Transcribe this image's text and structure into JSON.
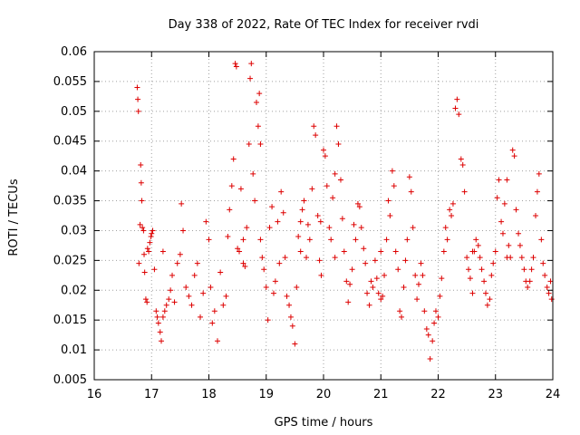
{
  "chart_data": {
    "type": "scatter",
    "title": "Day 338 of 2022, Rate Of TEC Index for receiver rvdi",
    "xlabel": "GPS time / hours",
    "ylabel": "ROTI / TECUs",
    "xlim": [
      16,
      24
    ],
    "ylim": [
      0.005,
      0.06
    ],
    "xticks": [
      "16",
      "17",
      "18",
      "19",
      "20",
      "21",
      "22",
      "23",
      "24"
    ],
    "yticks": [
      "0.005",
      "0.01",
      "0.015",
      "0.02",
      "0.025",
      "0.03",
      "0.035",
      "0.04",
      "0.045",
      "0.05",
      "0.055",
      "0.06"
    ],
    "grid": true,
    "marker": "plus",
    "color": "#dd0000",
    "series": [
      {
        "points": [
          [
            16.75,
            0.054
          ],
          [
            16.76,
            0.052
          ],
          [
            16.77,
            0.05
          ],
          [
            16.78,
            0.0245
          ],
          [
            16.8,
            0.031
          ],
          [
            16.81,
            0.041
          ],
          [
            16.82,
            0.038
          ],
          [
            16.83,
            0.035
          ],
          [
            16.84,
            0.0305
          ],
          [
            16.86,
            0.03
          ],
          [
            16.87,
            0.026
          ],
          [
            16.88,
            0.023
          ],
          [
            16.9,
            0.0185
          ],
          [
            16.92,
            0.018
          ],
          [
            16.93,
            0.027
          ],
          [
            16.95,
            0.0265
          ],
          [
            16.97,
            0.028
          ],
          [
            16.99,
            0.029
          ],
          [
            17.0,
            0.0295
          ],
          [
            17.02,
            0.03
          ],
          [
            17.05,
            0.0235
          ],
          [
            17.08,
            0.0165
          ],
          [
            17.1,
            0.0155
          ],
          [
            17.12,
            0.0145
          ],
          [
            17.15,
            0.013
          ],
          [
            17.17,
            0.0115
          ],
          [
            17.2,
            0.0155
          ],
          [
            17.23,
            0.0165
          ],
          [
            17.26,
            0.0175
          ],
          [
            17.3,
            0.0185
          ],
          [
            17.33,
            0.02
          ],
          [
            17.36,
            0.0225
          ],
          [
            17.4,
            0.018
          ],
          [
            17.45,
            0.0245
          ],
          [
            17.5,
            0.026
          ],
          [
            17.52,
            0.0345
          ],
          [
            17.55,
            0.03
          ],
          [
            17.6,
            0.0205
          ],
          [
            17.65,
            0.019
          ],
          [
            17.7,
            0.0175
          ],
          [
            17.75,
            0.0225
          ],
          [
            17.8,
            0.0245
          ],
          [
            17.85,
            0.0155
          ],
          [
            17.9,
            0.0195
          ],
          [
            17.95,
            0.0315
          ],
          [
            18.0,
            0.0285
          ],
          [
            18.03,
            0.0205
          ],
          [
            18.06,
            0.0145
          ],
          [
            18.1,
            0.0165
          ],
          [
            18.15,
            0.0115
          ],
          [
            18.2,
            0.023
          ],
          [
            18.25,
            0.0175
          ],
          [
            18.3,
            0.019
          ],
          [
            18.33,
            0.029
          ],
          [
            18.36,
            0.0335
          ],
          [
            18.4,
            0.0375
          ],
          [
            18.43,
            0.042
          ],
          [
            18.46,
            0.058
          ],
          [
            18.48,
            0.0575
          ],
          [
            18.5,
            0.027
          ],
          [
            18.53,
            0.0265
          ],
          [
            18.56,
            0.037
          ],
          [
            18.6,
            0.0285
          ],
          [
            18.63,
            0.024
          ],
          [
            18.66,
            0.0305
          ],
          [
            18.7,
            0.0445
          ],
          [
            18.72,
            0.0555
          ],
          [
            18.74,
            0.058
          ],
          [
            18.77,
            0.0395
          ],
          [
            18.8,
            0.035
          ],
          [
            18.83,
            0.0515
          ],
          [
            18.86,
            0.0475
          ],
          [
            18.88,
            0.053
          ],
          [
            18.9,
            0.0445
          ],
          [
            18.93,
            0.0255
          ],
          [
            18.96,
            0.0235
          ],
          [
            19.0,
            0.0205
          ],
          [
            19.03,
            0.015
          ],
          [
            19.06,
            0.0305
          ],
          [
            19.1,
            0.034
          ],
          [
            19.13,
            0.0195
          ],
          [
            19.16,
            0.0215
          ],
          [
            19.2,
            0.0315
          ],
          [
            19.23,
            0.0245
          ],
          [
            19.26,
            0.0365
          ],
          [
            19.3,
            0.033
          ],
          [
            19.33,
            0.0255
          ],
          [
            19.36,
            0.019
          ],
          [
            19.4,
            0.0175
          ],
          [
            19.43,
            0.0155
          ],
          [
            19.46,
            0.014
          ],
          [
            19.5,
            0.011
          ],
          [
            19.53,
            0.0205
          ],
          [
            19.56,
            0.029
          ],
          [
            19.6,
            0.0315
          ],
          [
            19.63,
            0.0335
          ],
          [
            19.66,
            0.035
          ],
          [
            19.7,
            0.0255
          ],
          [
            19.73,
            0.031
          ],
          [
            19.76,
            0.0285
          ],
          [
            19.8,
            0.037
          ],
          [
            19.83,
            0.0475
          ],
          [
            19.86,
            0.046
          ],
          [
            19.9,
            0.0325
          ],
          [
            19.93,
            0.025
          ],
          [
            19.96,
            0.0225
          ],
          [
            20.0,
            0.0435
          ],
          [
            20.03,
            0.0425
          ],
          [
            20.06,
            0.0375
          ],
          [
            20.1,
            0.0305
          ],
          [
            20.13,
            0.0285
          ],
          [
            20.16,
            0.0355
          ],
          [
            20.2,
            0.0395
          ],
          [
            20.23,
            0.0475
          ],
          [
            20.26,
            0.0445
          ],
          [
            20.3,
            0.0385
          ],
          [
            20.33,
            0.032
          ],
          [
            20.36,
            0.0265
          ],
          [
            20.4,
            0.0215
          ],
          [
            20.43,
            0.018
          ],
          [
            20.46,
            0.021
          ],
          [
            20.5,
            0.0235
          ],
          [
            20.53,
            0.031
          ],
          [
            20.56,
            0.0285
          ],
          [
            20.6,
            0.0345
          ],
          [
            20.63,
            0.034
          ],
          [
            20.66,
            0.0305
          ],
          [
            20.7,
            0.027
          ],
          [
            20.73,
            0.0245
          ],
          [
            20.76,
            0.0195
          ],
          [
            20.8,
            0.0175
          ],
          [
            20.83,
            0.0215
          ],
          [
            20.86,
            0.0205
          ],
          [
            20.9,
            0.025
          ],
          [
            20.93,
            0.022
          ],
          [
            20.96,
            0.0195
          ],
          [
            21.0,
            0.0185
          ],
          [
            21.03,
            0.019
          ],
          [
            21.06,
            0.0225
          ],
          [
            21.1,
            0.0285
          ],
          [
            21.13,
            0.035
          ],
          [
            21.16,
            0.0325
          ],
          [
            21.2,
            0.04
          ],
          [
            21.23,
            0.0375
          ],
          [
            21.26,
            0.0265
          ],
          [
            21.3,
            0.0235
          ],
          [
            21.33,
            0.0165
          ],
          [
            21.36,
            0.0155
          ],
          [
            21.4,
            0.0205
          ],
          [
            21.43,
            0.025
          ],
          [
            21.46,
            0.0285
          ],
          [
            21.5,
            0.039
          ],
          [
            21.53,
            0.0365
          ],
          [
            21.56,
            0.0305
          ],
          [
            21.6,
            0.0225
          ],
          [
            21.63,
            0.0185
          ],
          [
            21.66,
            0.021
          ],
          [
            21.7,
            0.0245
          ],
          [
            21.73,
            0.0225
          ],
          [
            21.76,
            0.0165
          ],
          [
            21.8,
            0.0135
          ],
          [
            21.83,
            0.0125
          ],
          [
            21.86,
            0.0085
          ],
          [
            21.9,
            0.0115
          ],
          [
            21.93,
            0.0145
          ],
          [
            21.96,
            0.0165
          ],
          [
            22.0,
            0.0155
          ],
          [
            22.03,
            0.019
          ],
          [
            22.06,
            0.022
          ],
          [
            22.1,
            0.0265
          ],
          [
            22.13,
            0.0305
          ],
          [
            22.16,
            0.0285
          ],
          [
            22.2,
            0.0335
          ],
          [
            22.23,
            0.0325
          ],
          [
            22.26,
            0.0345
          ],
          [
            22.3,
            0.0505
          ],
          [
            22.33,
            0.052
          ],
          [
            22.36,
            0.0495
          ],
          [
            22.4,
            0.042
          ],
          [
            22.43,
            0.041
          ],
          [
            22.46,
            0.0365
          ],
          [
            22.5,
            0.0255
          ],
          [
            22.53,
            0.0235
          ],
          [
            22.56,
            0.022
          ],
          [
            22.6,
            0.0195
          ],
          [
            22.63,
            0.0265
          ],
          [
            22.66,
            0.0285
          ],
          [
            22.7,
            0.0275
          ],
          [
            22.73,
            0.0255
          ],
          [
            22.76,
            0.0235
          ],
          [
            22.8,
            0.0215
          ],
          [
            22.83,
            0.0195
          ],
          [
            22.86,
            0.0175
          ],
          [
            22.9,
            0.0185
          ],
          [
            22.93,
            0.0225
          ],
          [
            22.96,
            0.0245
          ],
          [
            23.0,
            0.0265
          ],
          [
            23.03,
            0.0355
          ],
          [
            23.06,
            0.0385
          ],
          [
            23.1,
            0.0315
          ],
          [
            23.13,
            0.0295
          ],
          [
            23.16,
            0.0345
          ],
          [
            23.2,
            0.0385
          ],
          [
            23.23,
            0.0275
          ],
          [
            23.26,
            0.0255
          ],
          [
            23.3,
            0.0435
          ],
          [
            23.33,
            0.0425
          ],
          [
            23.36,
            0.0335
          ],
          [
            23.4,
            0.0295
          ],
          [
            23.43,
            0.0275
          ],
          [
            23.46,
            0.0255
          ],
          [
            23.5,
            0.0235
          ],
          [
            23.53,
            0.0215
          ],
          [
            23.56,
            0.0205
          ],
          [
            23.6,
            0.0215
          ],
          [
            23.63,
            0.0235
          ],
          [
            23.66,
            0.0255
          ],
          [
            23.7,
            0.0325
          ],
          [
            23.73,
            0.0365
          ],
          [
            23.76,
            0.0395
          ],
          [
            23.8,
            0.0285
          ],
          [
            23.83,
            0.0245
          ],
          [
            23.86,
            0.0225
          ],
          [
            23.9,
            0.0205
          ],
          [
            23.93,
            0.0195
          ],
          [
            23.96,
            0.0215
          ],
          [
            23.98,
            0.0185
          ],
          [
            17.2,
            0.0265
          ],
          [
            18.6,
            0.0245
          ],
          [
            19.6,
            0.0265
          ],
          [
            20.2,
            0.0255
          ],
          [
            21.0,
            0.0265
          ],
          [
            22.6,
            0.0265
          ],
          [
            23.2,
            0.0255
          ],
          [
            18.9,
            0.0285
          ],
          [
            19.95,
            0.0315
          ]
        ]
      }
    ]
  }
}
